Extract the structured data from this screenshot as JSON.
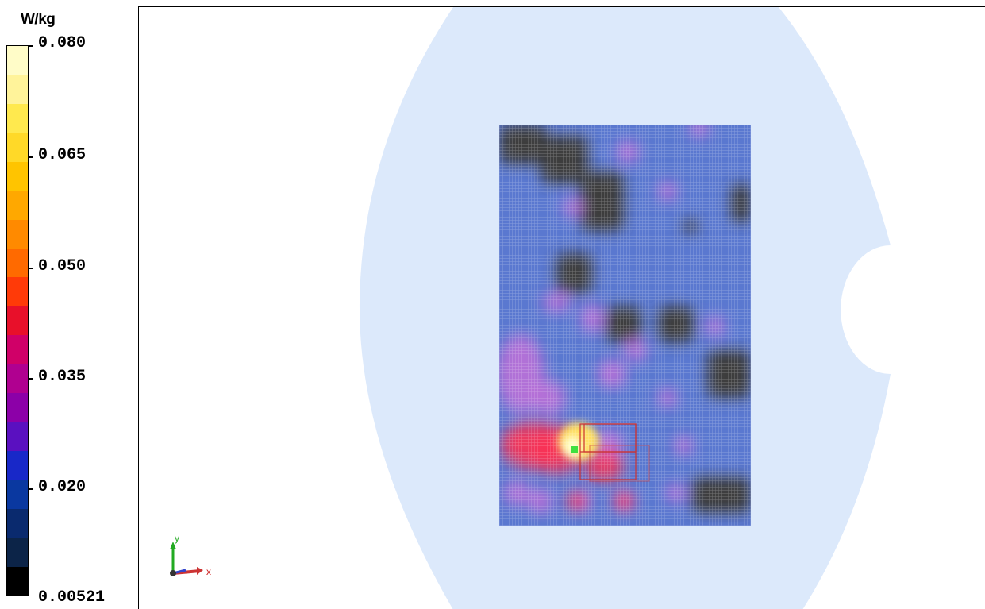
{
  "legend": {
    "unit": "W/kg",
    "ticks": [
      "0.080",
      "0.065",
      "0.050",
      "0.035",
      "0.020",
      "0.00521"
    ],
    "scale_max": 0.08,
    "scale_min": 0.00521,
    "colors": [
      "#fffcc8",
      "#fff39a",
      "#ffe94e",
      "#ffd928",
      "#ffc400",
      "#ffa800",
      "#ff8a00",
      "#ff6a00",
      "#ff3a08",
      "#e8102a",
      "#d00068",
      "#b00090",
      "#8c00a8",
      "#5a10c0",
      "#1828c8",
      "#0a38a0",
      "#0a2a6e",
      "#0c2448",
      "#000000"
    ]
  },
  "view": {
    "phantom_color": "#dce9fb",
    "scan_colors": {
      "base": "#5a78d0",
      "low": "#3c3c3c",
      "mid": "#c070d8",
      "high": "#ff3050",
      "hot": "#ffe060",
      "peak": "#ffffc8"
    },
    "peak_marker_color": "#40e040",
    "zoom_box_color": "#cc3333"
  },
  "triad": {
    "x_label": "x",
    "y_label": "y"
  }
}
